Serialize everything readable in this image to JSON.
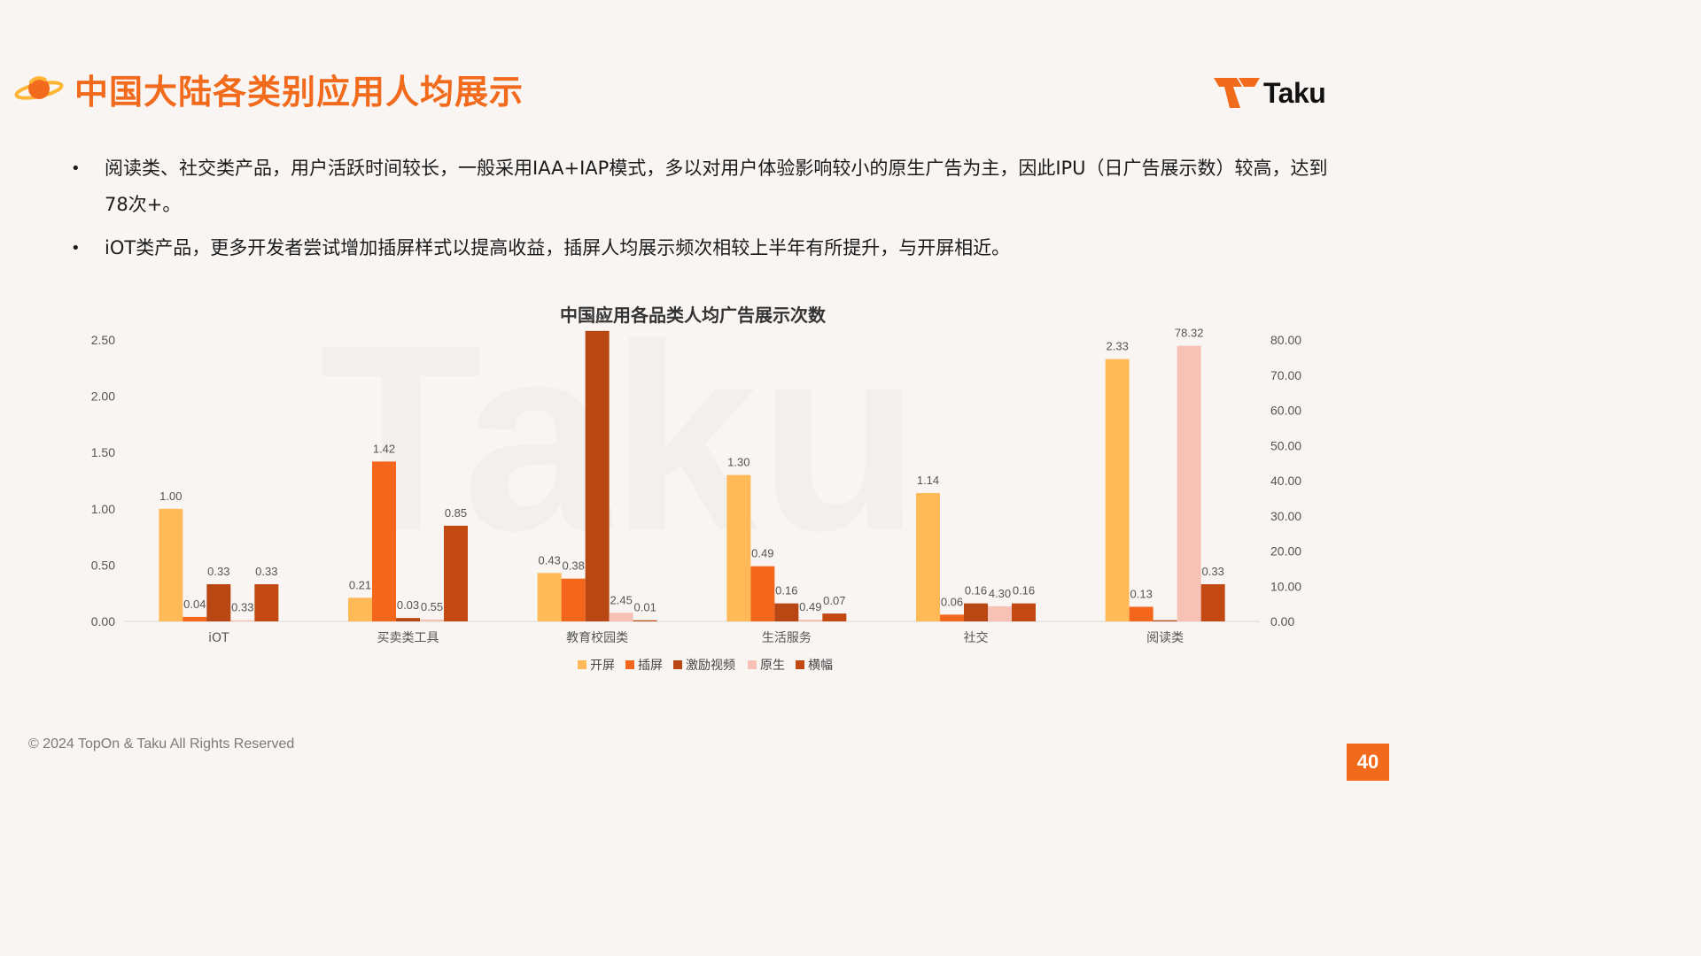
{
  "header": {
    "title": "中国大陆各类别应用人均展示",
    "icon": "planet-icon",
    "accent_color": "#f26a1b"
  },
  "brand": {
    "name": "Taku",
    "icon": "taku-logo-icon"
  },
  "bullets": [
    {
      "text": "阅读类、社交类产品，用户活跃时间较长，一般采用IAA+IAP模式，多以对用户体验影响较小的原生广告为主，因此IPU（日广告展示数）较高，达到78次+。"
    },
    {
      "text": "iOT类产品，更多开发者尝试增加插屏样式以提高收益，插屏人均展示频次相较上半年有所提升，与开屏相近。"
    }
  ],
  "chart_data": {
    "type": "bar",
    "title": "中国应用各品类人均广告展示次数",
    "categories": [
      "iOT",
      "买卖类工具",
      "教育校园类",
      "生活服务",
      "社交",
      "阅读类"
    ],
    "series": [
      {
        "name": "开屏",
        "color": "#ffb957",
        "axis": "left",
        "values": [
          1.0,
          0.21,
          0.43,
          1.3,
          1.14,
          2.33
        ]
      },
      {
        "name": "插屏",
        "color": "#f3661c",
        "axis": "left",
        "values": [
          0.04,
          1.42,
          0.38,
          0.49,
          0.06,
          0.13
        ]
      },
      {
        "name": "激励视频",
        "color": "#b84714",
        "axis": "left",
        "values": [
          0.33,
          0.03,
          2.58,
          0.16,
          0.16,
          0.01
        ]
      },
      {
        "name": "原生",
        "color": "#f7c2b5",
        "axis": "right",
        "values": [
          0.33,
          0.55,
          2.45,
          0.49,
          4.3,
          78.32
        ]
      },
      {
        "name": "横幅",
        "color": "#c24a12",
        "axis": "left",
        "values": [
          0.33,
          0.85,
          0.01,
          0.07,
          0.16,
          0.33
        ]
      }
    ],
    "labels": [
      [
        "1.00",
        "0.04",
        "0.33",
        "0.33",
        "0.33"
      ],
      [
        "0.21",
        "1.42",
        "0.03",
        "0.55",
        "0.85"
      ],
      [
        "0.43",
        "0.38",
        "2.58",
        "2.45",
        "0.01"
      ],
      [
        "1.30",
        "0.49",
        "0.16",
        "0.49",
        "0.07"
      ],
      [
        "1.14",
        "0.06",
        "0.16",
        "4.30",
        "0.16"
      ],
      [
        "2.33",
        "0.13",
        "",
        "78.32",
        "0.33"
      ]
    ],
    "y_left": {
      "ticks": [
        "0.00",
        "0.50",
        "1.00",
        "1.50",
        "2.00",
        "2.50"
      ],
      "range": [
        0,
        2.5
      ]
    },
    "y_right": {
      "ticks": [
        "0.00",
        "10.00",
        "20.00",
        "30.00",
        "40.00",
        "50.00",
        "60.00",
        "70.00",
        "80.00"
      ],
      "range": [
        0,
        80
      ]
    },
    "legend_position": "bottom",
    "grid": false
  },
  "footer": {
    "copyright": "© 2024 TopOn & Taku All Rights Reserved",
    "page_number": "40"
  }
}
